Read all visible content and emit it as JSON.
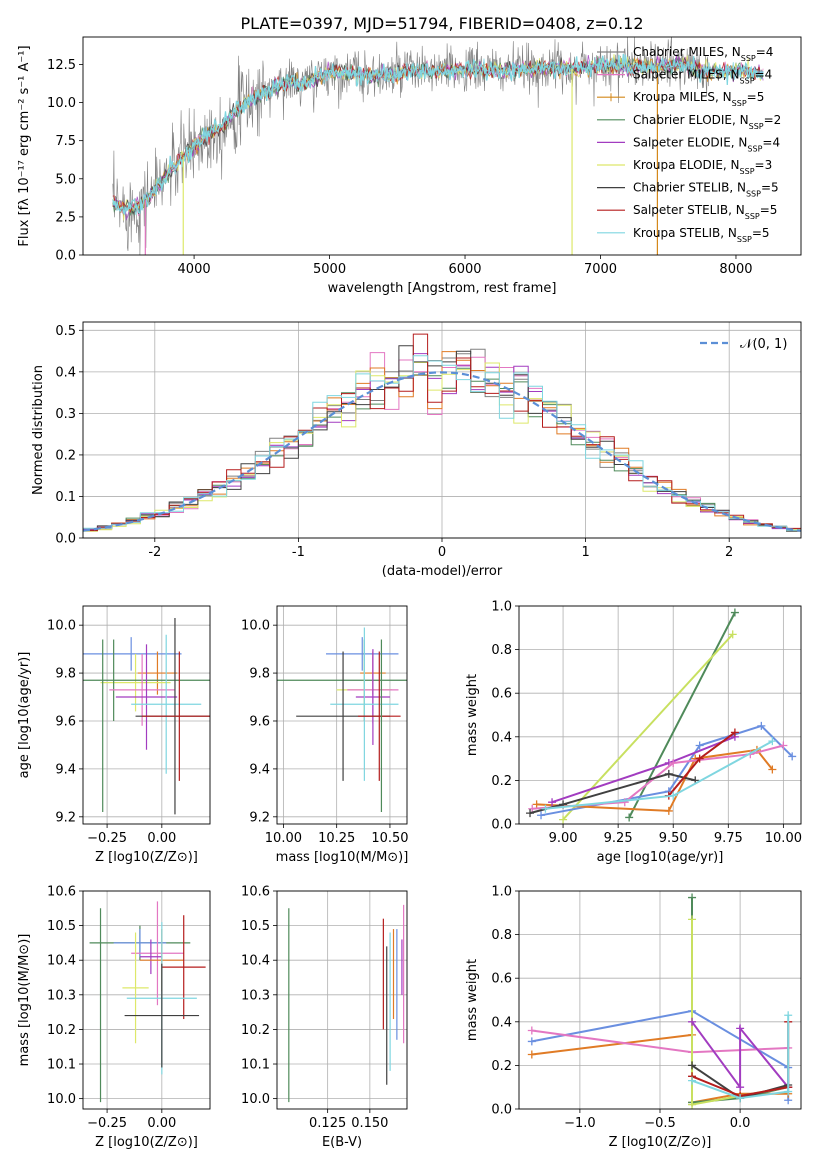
{
  "title": "PLATE=0397, MJD=51794, FIBERID=0408, z=0.12",
  "palette": [
    "#808080",
    "#e377c2",
    "#d4881a",
    "#4f8a5a",
    "#a23cc0",
    "#dde86a",
    "#404040",
    "#b51d1d",
    "#7fd6e0",
    "#6a8fe0",
    "#e07b25",
    "#c8e060"
  ],
  "chart_data": [
    {
      "id": "spectrum",
      "type": "line",
      "title": "PLATE=0397, MJD=51794, FIBERID=0408, z=0.12",
      "xlabel": "wavelength [Angstrom, rest frame]",
      "ylabel": "Flux [fλ 10⁻¹⁷ erg cm⁻² s⁻¹ A⁻¹]",
      "xlim": [
        3180,
        8480
      ],
      "ylim": [
        0,
        14.3
      ],
      "xticks": [
        4000,
        5000,
        6000,
        7000,
        8000
      ],
      "yticks": [
        0.0,
        2.5,
        5.0,
        7.5,
        10.0,
        12.5
      ],
      "legend_position": "top-right",
      "legend": [
        "Chabrier MILES, N_SSP=4",
        "Salpeter MILES, N_SSP=4",
        "Kroupa MILES, N_SSP=5",
        "Chabrier ELODIE, N_SSP=2",
        "Salpeter ELODIE, N_SSP=4",
        "Kroupa ELODIE, N_SSP=3",
        "Chabrier STELIB, N_SSP=5",
        "Salpeter STELIB, N_SSP=5",
        "Kroupa STELIB, N_SSP=5"
      ],
      "data_anchor": {
        "x": [
          3400,
          3500,
          3600,
          3700,
          3800,
          3900,
          4000,
          4100,
          4200,
          4300,
          4400,
          4500,
          4600,
          4700,
          4800,
          4900,
          5000,
          5200,
          5400,
          5600,
          5800,
          6000,
          6200,
          6400,
          6600,
          6800,
          7000,
          7200,
          7400,
          7600,
          7800,
          8000,
          8200
        ],
        "y": [
          3.3,
          3.0,
          3.2,
          4.2,
          5.3,
          6.3,
          7.1,
          7.9,
          8.4,
          9.4,
          10.1,
          10.6,
          11.0,
          11.4,
          11.2,
          11.6,
          12.0,
          11.9,
          11.7,
          12.1,
          12.0,
          12.2,
          12.1,
          12.1,
          12.3,
          12.2,
          12.5,
          12.4,
          12.4,
          12.5,
          12.0,
          12.1,
          11.9
        ]
      },
      "dips": [
        {
          "x": 3640,
          "series": 1
        },
        {
          "x": 3920,
          "series": 5
        },
        {
          "x": 6790,
          "series": 5
        },
        {
          "x": 7420,
          "series": 2
        }
      ]
    },
    {
      "id": "residuals",
      "type": "line",
      "xlabel": "(data-model)/error",
      "ylabel": "Normed distribution",
      "xlim": [
        -2.5,
        2.5
      ],
      "ylim": [
        0,
        0.52
      ],
      "xticks": [
        -2,
        -1,
        0,
        1,
        2
      ],
      "yticks": [
        0.0,
        0.1,
        0.2,
        0.3,
        0.4,
        0.5
      ],
      "legend": [
        "𝒩(0, 1)"
      ],
      "legend_position": "top-right",
      "bin_width": 0.1,
      "bins_start": -2.5
    },
    {
      "id": "age-vs-Z",
      "type": "scatter",
      "xlabel": "Z [log10(Z/Z⊙)]",
      "ylabel": "age  [log10(age/yr)]",
      "xlim": [
        -0.36,
        0.22
      ],
      "ylim": [
        9.17,
        10.08
      ],
      "xticks": [
        -0.25,
        0.0
      ],
      "xticklabels": [
        "−0.25",
        "0.00"
      ],
      "yticks": [
        9.2,
        9.4,
        9.6,
        9.8,
        10.0
      ],
      "points": [
        {
          "x": -0.14,
          "y": 9.88,
          "xerr": 0.23,
          "yerr": 0.07,
          "color": "#6a8fe0"
        },
        {
          "x": -0.02,
          "y": 9.8,
          "xerr": 0.09,
          "yerr": 0.09,
          "color": "#e07b25"
        },
        {
          "x": -0.12,
          "y": 9.76,
          "xerr": 0.16,
          "yerr": 0.12,
          "color": "#dde86a"
        },
        {
          "x": -0.22,
          "y": 9.77,
          "xerr": 0.45,
          "yerr": 0.17,
          "color": "#4f8a5a"
        },
        {
          "x": -0.09,
          "y": 9.73,
          "xerr": 0.15,
          "yerr": 0.15,
          "color": "#e377c2"
        },
        {
          "x": -0.07,
          "y": 9.7,
          "xerr": 0.14,
          "yerr": 0.22,
          "color": "#a23cc0"
        },
        {
          "x": 0.02,
          "y": 9.67,
          "xerr": 0.16,
          "yerr": 0.29,
          "color": "#7fd6e0"
        },
        {
          "x": 0.06,
          "y": 9.62,
          "xerr": 0.18,
          "yerr": 0.41,
          "color": "#404040"
        },
        {
          "x": 0.08,
          "y": 9.62,
          "xerr": 0.17,
          "yerr": 0.27,
          "color": "#b51d1d"
        },
        {
          "x": -0.27,
          "y": 9.58,
          "xerr": 0.0,
          "yerr": 0.36,
          "color": "#4f8a5a"
        }
      ]
    },
    {
      "id": "age-vs-mass",
      "type": "scatter",
      "xlabel": "mass [log10(M/M⊙)]",
      "ylabel": "",
      "xlim": [
        9.97,
        10.58
      ],
      "ylim": [
        9.17,
        10.08
      ],
      "xticks": [
        10.0,
        10.25,
        10.5
      ],
      "xticklabels": [
        "10.00",
        "10.25",
        "10.50"
      ],
      "yticks": [
        9.2,
        9.4,
        9.6,
        9.8,
        10.0
      ],
      "points": [
        {
          "x": 10.37,
          "y": 9.88,
          "xerr": 0.17,
          "yerr": 0.07,
          "color": "#6a8fe0"
        },
        {
          "x": 10.42,
          "y": 9.8,
          "xerr": 0.06,
          "yerr": 0.09,
          "color": "#e07b25"
        },
        {
          "x": 10.38,
          "y": 9.77,
          "xerr": 0.42,
          "yerr": 0.17,
          "color": "#4f8a5a"
        },
        {
          "x": 10.38,
          "y": 9.73,
          "xerr": 0.13,
          "yerr": 0.12,
          "color": "#dde86a"
        },
        {
          "x": 10.42,
          "y": 9.73,
          "xerr": 0.12,
          "yerr": 0.14,
          "color": "#e377c2"
        },
        {
          "x": 10.42,
          "y": 9.7,
          "xerr": 0.08,
          "yerr": 0.2,
          "color": "#a23cc0"
        },
        {
          "x": 10.38,
          "y": 9.67,
          "xerr": 0.16,
          "yerr": 0.32,
          "color": "#7fd6e0"
        },
        {
          "x": 10.28,
          "y": 9.62,
          "xerr": 0.22,
          "yerr": 0.27,
          "color": "#404040"
        },
        {
          "x": 10.45,
          "y": 9.62,
          "xerr": 0.1,
          "yerr": 0.27,
          "color": "#b51d1d"
        },
        {
          "x": 10.46,
          "y": 9.58,
          "xerr": 0.0,
          "yerr": 0.36,
          "color": "#4f8a5a"
        }
      ]
    },
    {
      "id": "weight-vs-age",
      "type": "line",
      "xlabel": "age  [log10(age/yr)]",
      "ylabel": "mass weight",
      "xlim": [
        8.8,
        10.08
      ],
      "ylim": [
        0.0,
        1.0
      ],
      "xticks": [
        9.0,
        9.25,
        9.5,
        9.75,
        10.0
      ],
      "xticklabels": [
        "9.00",
        "9.25",
        "9.50",
        "9.75",
        "10.00"
      ],
      "yticks": [
        0.0,
        0.2,
        0.4,
        0.6,
        0.8,
        1.0
      ],
      "series": [
        {
          "color": "#4f8a5a",
          "x": [
            9.3,
            9.78
          ],
          "y": [
            0.03,
            0.97
          ]
        },
        {
          "color": "#c8e060",
          "x": [
            9.0,
            9.77
          ],
          "y": [
            0.02,
            0.87
          ]
        },
        {
          "color": "#6a8fe0",
          "x": [
            8.9,
            9.48,
            9.62,
            9.9,
            10.04
          ],
          "y": [
            0.04,
            0.15,
            0.36,
            0.45,
            0.31
          ]
        },
        {
          "color": "#e07b25",
          "x": [
            8.88,
            9.48,
            9.6,
            9.88,
            9.95
          ],
          "y": [
            0.09,
            0.06,
            0.3,
            0.34,
            0.25
          ]
        },
        {
          "color": "#a23cc0",
          "x": [
            8.95,
            9.48,
            9.78
          ],
          "y": [
            0.1,
            0.28,
            0.4
          ]
        },
        {
          "color": "#e377c2",
          "x": [
            8.86,
            9.28,
            9.5,
            9.85,
            10.0
          ],
          "y": [
            0.07,
            0.1,
            0.28,
            0.32,
            0.36
          ]
        },
        {
          "color": "#404040",
          "x": [
            8.85,
            9.0,
            9.48,
            9.6
          ],
          "y": [
            0.05,
            0.09,
            0.23,
            0.2
          ]
        },
        {
          "color": "#b51d1d",
          "x": [
            9.48,
            9.62,
            9.78
          ],
          "y": [
            0.13,
            0.3,
            0.42
          ]
        },
        {
          "color": "#7fd6e0",
          "x": [
            8.92,
            9.5,
            9.95
          ],
          "y": [
            0.07,
            0.13,
            0.38
          ]
        }
      ]
    },
    {
      "id": "mass-vs-Z",
      "type": "scatter",
      "xlabel": "Z [log10(Z/Z⊙)]",
      "ylabel": "mass [log10(M/M⊙)]",
      "xlim": [
        -0.36,
        0.22
      ],
      "ylim": [
        9.97,
        10.6
      ],
      "xticks": [
        -0.25,
        0.0
      ],
      "xticklabels": [
        "−0.25",
        "0.00"
      ],
      "yticks": [
        10.0,
        10.1,
        10.2,
        10.3,
        10.4,
        10.5,
        10.6
      ],
      "points": [
        {
          "x": -0.1,
          "y": 10.45,
          "xerr": 0.23,
          "yerr": 0.05,
          "color": "#4f8a5a"
        },
        {
          "x": -0.1,
          "y": 10.45,
          "xerr": 0.12,
          "yerr": 0.04,
          "color": "#6a8fe0"
        },
        {
          "x": -0.02,
          "y": 10.42,
          "xerr": 0.12,
          "yerr": 0.15,
          "color": "#e377c2"
        },
        {
          "x": -0.05,
          "y": 10.41,
          "xerr": 0.05,
          "yerr": 0.05,
          "color": "#a23cc0"
        },
        {
          "x": 0.0,
          "y": 10.4,
          "xerr": 0.1,
          "yerr": 0.09,
          "color": "#e07b25"
        },
        {
          "x": 0.1,
          "y": 10.38,
          "xerr": 0.1,
          "yerr": 0.15,
          "color": "#b51d1d"
        },
        {
          "x": -0.12,
          "y": 10.32,
          "xerr": 0.06,
          "yerr": 0.16,
          "color": "#dde86a"
        },
        {
          "x": 0.0,
          "y": 10.29,
          "xerr": 0.16,
          "yerr": 0.22,
          "color": "#7fd6e0"
        },
        {
          "x": 0.0,
          "y": 10.24,
          "xerr": 0.17,
          "yerr": 0.15,
          "color": "#404040"
        },
        {
          "x": -0.28,
          "y": 10.27,
          "xerr": 0.0,
          "yerr": 0.28,
          "color": "#4f8a5a"
        }
      ]
    },
    {
      "id": "mass-vs-ebv",
      "type": "scatter",
      "xlabel": "E(B-V)",
      "ylabel": "",
      "xlim": [
        0.095,
        0.172
      ],
      "ylim": [
        9.97,
        10.6
      ],
      "xticks": [
        0.125,
        0.15
      ],
      "xticklabels": [
        "0.125",
        "0.150"
      ],
      "yticks": [
        10.0,
        10.1,
        10.2,
        10.3,
        10.4,
        10.5,
        10.6
      ],
      "points": [
        {
          "x": 0.102,
          "y": 10.27,
          "xerr": 0.0,
          "yerr": 0.28,
          "color": "#4f8a5a"
        },
        {
          "x": 0.158,
          "y": 10.36,
          "xerr": 0.0,
          "yerr": 0.16,
          "color": "#b51d1d"
        },
        {
          "x": 0.16,
          "y": 10.24,
          "xerr": 0.0,
          "yerr": 0.2,
          "color": "#404040"
        },
        {
          "x": 0.162,
          "y": 10.28,
          "xerr": 0.0,
          "yerr": 0.2,
          "color": "#7fd6e0"
        },
        {
          "x": 0.164,
          "y": 10.36,
          "xerr": 0.0,
          "yerr": 0.13,
          "color": "#e07b25"
        },
        {
          "x": 0.166,
          "y": 10.33,
          "xerr": 0.0,
          "yerr": 0.16,
          "color": "#6a8fe0"
        },
        {
          "x": 0.169,
          "y": 10.38,
          "xerr": 0.0,
          "yerr": 0.08,
          "color": "#a23cc0"
        },
        {
          "x": 0.17,
          "y": 10.36,
          "xerr": 0.0,
          "yerr": 0.2,
          "color": "#e377c2"
        }
      ]
    },
    {
      "id": "weight-vs-Z",
      "type": "line",
      "xlabel": "Z [log10(Z/Z⊙)]",
      "ylabel": "mass weight",
      "xlim": [
        -1.38,
        0.38
      ],
      "ylim": [
        0.0,
        1.0
      ],
      "xticks": [
        -1.0,
        -0.5,
        0.0
      ],
      "xticklabels": [
        "−1.0",
        "−0.5",
        "0.0"
      ],
      "yticks": [
        0.0,
        0.2,
        0.4,
        0.6,
        0.8,
        1.0
      ],
      "series": [
        {
          "color": "#6a8fe0",
          "x": [
            -1.3,
            -0.3,
            0.3,
            0.3
          ],
          "y": [
            0.31,
            0.45,
            0.19,
            0.04
          ]
        },
        {
          "color": "#e07b25",
          "x": [
            -1.3,
            -0.3,
            -0.3,
            0.0,
            0.3
          ],
          "y": [
            0.25,
            0.34,
            0.03,
            0.07,
            0.07
          ]
        },
        {
          "color": "#e377c2",
          "x": [
            -1.3,
            -0.3,
            0.3
          ],
          "y": [
            0.36,
            0.26,
            0.28
          ]
        },
        {
          "color": "#4f8a5a",
          "x": [
            -0.3,
            -0.3,
            0.0,
            0.3
          ],
          "y": [
            0.97,
            0.03,
            0.05,
            0.1
          ]
        },
        {
          "color": "#c8e060",
          "x": [
            -0.3,
            -0.3,
            0.0,
            0.3
          ],
          "y": [
            0.87,
            0.02,
            0.06,
            0.1
          ]
        },
        {
          "color": "#a23cc0",
          "x": [
            -0.3,
            0.0,
            0.0,
            0.3
          ],
          "y": [
            0.4,
            0.1,
            0.37,
            0.1
          ]
        },
        {
          "color": "#404040",
          "x": [
            -0.3,
            0.0,
            0.3
          ],
          "y": [
            0.2,
            0.05,
            0.11
          ]
        },
        {
          "color": "#b51d1d",
          "x": [
            -0.3,
            0.0,
            0.3,
            0.3
          ],
          "y": [
            0.15,
            0.06,
            0.1,
            0.4
          ]
        },
        {
          "color": "#7fd6e0",
          "x": [
            -0.3,
            0.0,
            0.3,
            0.3
          ],
          "y": [
            0.13,
            0.05,
            0.08,
            0.43
          ]
        }
      ]
    }
  ]
}
